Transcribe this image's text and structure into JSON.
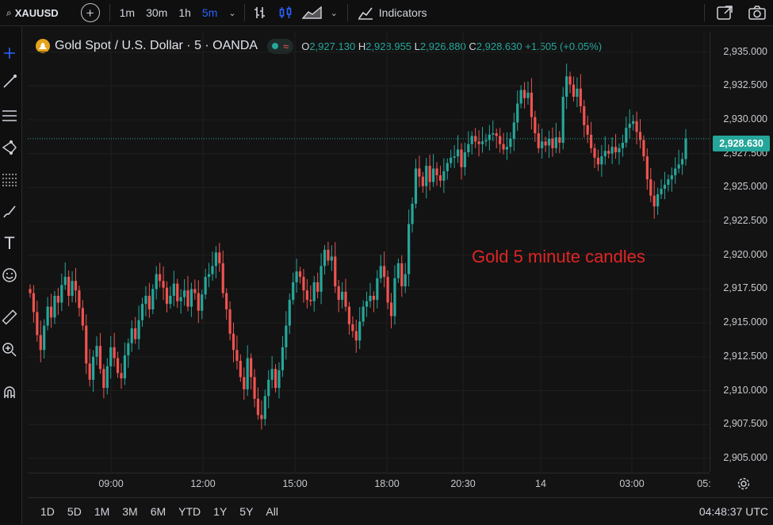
{
  "toolbar": {
    "symbol": "XAUUSD",
    "timeframes": [
      "1m",
      "30m",
      "1h",
      "5m"
    ],
    "active_timeframe": "5m",
    "indicators_label": "Indicators"
  },
  "legend": {
    "title": "Gold Spot / U.S. Dollar · 5 · OANDA",
    "o_key": "O",
    "o_val": "2,927.130",
    "h_key": "H",
    "h_val": "2,928.955",
    "l_key": "L",
    "l_val": "2,926.880",
    "c_key": "C",
    "c_val": "2,928.630",
    "change": "+1.505 (+0.05%)"
  },
  "annotation": "Gold 5 minute candles",
  "current_price": "2,928.630",
  "price_axis": [
    "2,935.000",
    "2,932.500",
    "2,930.000",
    "2,927.500",
    "2,925.000",
    "2,922.500",
    "2,920.000",
    "2,917.500",
    "2,915.000",
    "2,912.500",
    "2,910.000",
    "2,907.500",
    "2,905.000"
  ],
  "time_axis": [
    "09:00",
    "12:00",
    "15:00",
    "18:00",
    "20:30",
    "14",
    "03:00",
    "05:"
  ],
  "ranges": [
    "1D",
    "5D",
    "1M",
    "3M",
    "6M",
    "YTD",
    "1Y",
    "5Y",
    "All"
  ],
  "clock": "04:48:37 UTC",
  "colors": {
    "up": "#26a69a",
    "down": "#ef5350",
    "background": "#131313",
    "accent": "#2962ff",
    "annotation": "#e02424"
  },
  "chart_data": {
    "type": "candlestick",
    "ylim": [
      2904.0,
      2936.5
    ],
    "closes": [
      2917.2,
      2915.8,
      2914.1,
      2913.0,
      2914.8,
      2916.2,
      2915.4,
      2917.0,
      2916.5,
      2917.8,
      2918.4,
      2917.0,
      2918.1,
      2917.4,
      2916.1,
      2914.8,
      2912.0,
      2910.8,
      2912.5,
      2913.3,
      2911.6,
      2910.2,
      2911.8,
      2913.2,
      2912.4,
      2911.3,
      2910.9,
      2912.6,
      2913.5,
      2914.6,
      2913.8,
      2915.2,
      2916.4,
      2917.0,
      2916.0,
      2917.5,
      2918.6,
      2918.1,
      2917.6,
      2916.4,
      2917.0,
      2917.9,
      2916.6,
      2916.9,
      2917.4,
      2916.2,
      2917.5,
      2917.2,
      2915.9,
      2917.1,
      2918.4,
      2918.6,
      2919.2,
      2920.2,
      2919.4,
      2917.2,
      2916.0,
      2914.2,
      2913.0,
      2912.2,
      2911.0,
      2910.1,
      2912.4,
      2911.0,
      2909.4,
      2908.2,
      2907.9,
      2909.6,
      2910.8,
      2911.6,
      2910.2,
      2911.5,
      2913.2,
      2914.8,
      2916.7,
      2918.0,
      2918.8,
      2918.4,
      2917.4,
      2916.7,
      2916.6,
      2918.0,
      2917.3,
      2919.2,
      2920.4,
      2919.6,
      2919.9,
      2917.7,
      2916.7,
      2917.3,
      2916.2,
      2914.9,
      2914.4,
      2913.7,
      2915.1,
      2916.2,
      2916.6,
      2917.0,
      2916.7,
      2918.3,
      2919.2,
      2918.4,
      2916.5,
      2915.5,
      2918.3,
      2919.4,
      2917.7,
      2918.6,
      2922.3,
      2923.8,
      2926.4,
      2925.8,
      2925.1,
      2926.6,
      2925.4,
      2926.4,
      2925.9,
      2925.5,
      2926.2,
      2926.8,
      2927.2,
      2927.3,
      2927.8,
      2926.5,
      2927.6,
      2928.2,
      2928.8,
      2928.4,
      2928.2,
      2928.4,
      2928.5,
      2928.9,
      2929.0,
      2928.8,
      2928.2,
      2927.8,
      2928.0,
      2928.6,
      2929.8,
      2931.2,
      2932.2,
      2931.6,
      2932.0,
      2930.2,
      2929.0,
      2927.9,
      2928.4,
      2928.1,
      2928.6,
      2927.9,
      2928.7,
      2928.3,
      2931.7,
      2933.2,
      2932.6,
      2931.7,
      2932.3,
      2931.0,
      2929.6,
      2928.9,
      2927.9,
      2927.2,
      2926.7,
      2927.3,
      2927.7,
      2927.5,
      2928.0,
      2927.6,
      2927.9,
      2928.3,
      2929.4,
      2929.7,
      2929.9,
      2929.1,
      2928.5,
      2927.3,
      2925.6,
      2924.4,
      2923.6,
      2924.5,
      2924.9,
      2925.2,
      2925.6,
      2925.9,
      2926.4,
      2926.7,
      2927.1,
      2928.6
    ],
    "y_unit": "USD"
  }
}
